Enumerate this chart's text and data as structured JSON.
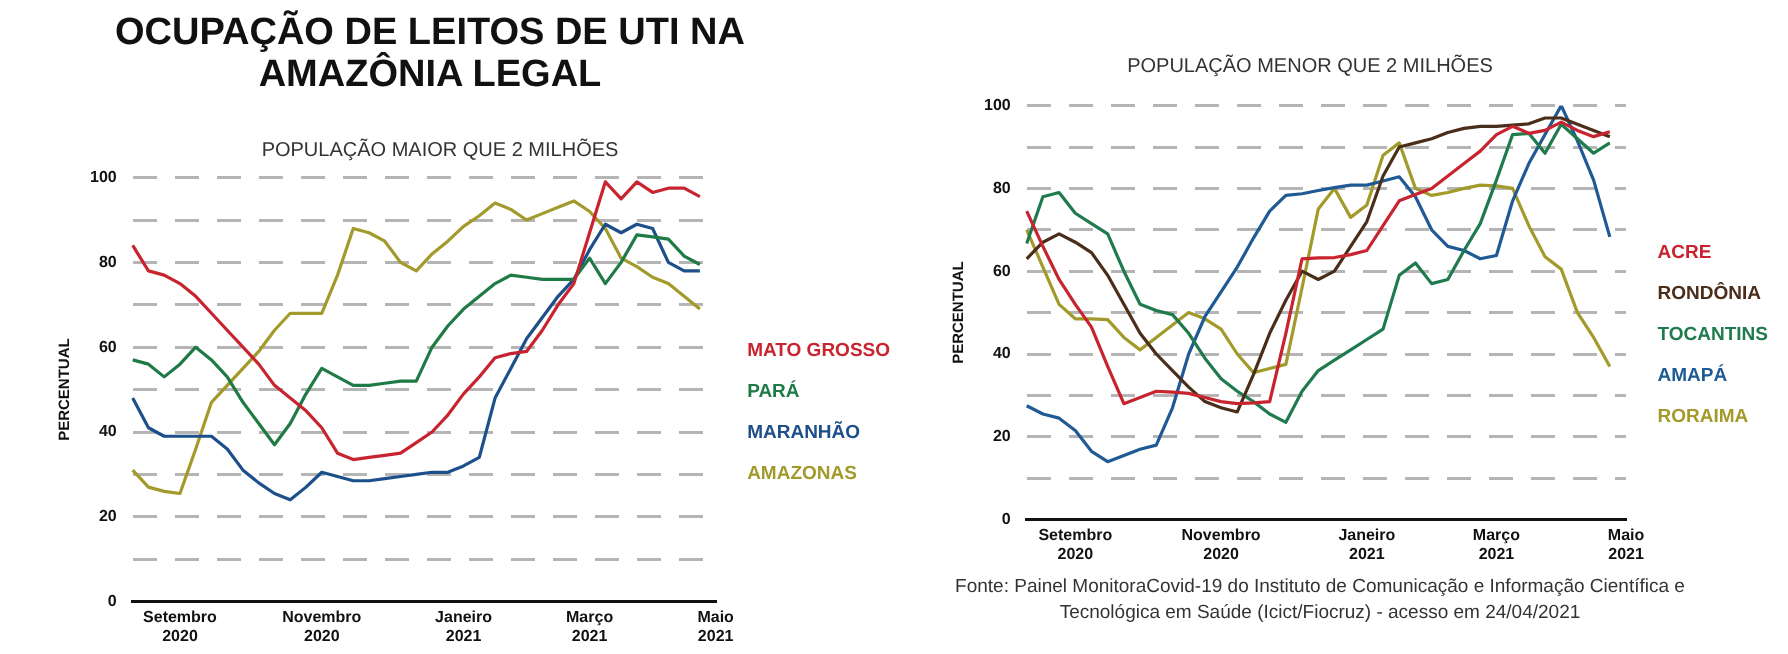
{
  "chart_data": [
    {
      "type": "line",
      "title": "OCUPAÇÃO DE LEITOS DE UTI NA AMAZÔNIA LEGAL",
      "subtitle": "POPULAÇÃO MAIOR QUE 2 MILHÕES",
      "ylabel": "PERCENTUAL",
      "categories": [
        null,
        null,
        null,
        "Setembro 2020",
        null,
        null,
        null,
        null,
        null,
        null,
        null,
        null,
        "Novembro 2020",
        null,
        null,
        null,
        null,
        null,
        null,
        null,
        null,
        "Janeiro 2021",
        null,
        null,
        null,
        null,
        null,
        null,
        null,
        "Março 2021",
        null,
        null,
        null,
        null,
        null,
        null,
        null,
        "Maio 2021"
      ],
      "series": [
        {
          "name": "MATO GROSSO",
          "color": "#c8242f",
          "values": [
            84,
            78,
            77,
            75,
            72,
            68,
            64,
            60,
            56,
            51,
            48,
            45,
            41,
            35,
            33.5,
            34,
            34.5,
            35,
            37.5,
            40,
            44,
            49,
            53,
            57.5,
            58.5,
            59,
            64,
            70,
            75,
            87,
            99,
            95,
            99,
            96.5,
            97.5,
            97.5,
            95.5,
            null
          ]
        },
        {
          "name": "PARÁ",
          "color": "#1f7a45",
          "values": [
            57,
            56,
            53,
            56,
            60,
            57,
            53,
            47,
            42,
            37,
            42,
            49,
            55,
            53,
            51,
            51,
            51.5,
            52,
            52,
            60,
            65,
            69,
            72,
            75,
            77,
            76.5,
            76,
            76,
            76,
            81,
            75,
            80,
            86.5,
            86,
            85.5,
            81.5,
            79.5,
            null
          ]
        },
        {
          "name": "MARANHÃO",
          "color": "#1d4f8a",
          "values": [
            48,
            41,
            39,
            39,
            39,
            39,
            36,
            31,
            28,
            25.5,
            24,
            27,
            30.5,
            29.5,
            28.5,
            28.5,
            29,
            29.5,
            30,
            30.5,
            30.5,
            32,
            34,
            48,
            55,
            62,
            67,
            72,
            76,
            83,
            89,
            87,
            89,
            88,
            80,
            78,
            78,
            null
          ]
        },
        {
          "name": "AMAZONAS",
          "color": "#a39a2c",
          "values": [
            31,
            27,
            26,
            25.5,
            36,
            47,
            51,
            55,
            59,
            64,
            68,
            68,
            68,
            77,
            88,
            87,
            85,
            80,
            78,
            82,
            85,
            88.5,
            91,
            94,
            92.5,
            90,
            91.5,
            93,
            94.5,
            92,
            88,
            81,
            79,
            76.5,
            75,
            72,
            69,
            null
          ]
        }
      ],
      "ylim": [
        0,
        100
      ],
      "yticks": [
        0,
        {
          "value": 10,
          "label": null
        },
        20,
        {
          "value": 30,
          "label": null
        },
        40,
        {
          "value": 50,
          "label": null
        },
        60,
        {
          "value": 70,
          "label": null
        },
        80,
        {
          "value": 90,
          "label": null
        },
        100
      ],
      "grid": "y",
      "legend": "right",
      "marker": "none",
      "line_style": "solid"
    },
    {
      "type": "line",
      "title": "POPULAÇÃO MENOR QUE 2 MILHÕES",
      "ylabel": "PERCENTUAL",
      "categories": [
        null,
        null,
        null,
        "Setembro 2020",
        null,
        null,
        null,
        null,
        null,
        null,
        null,
        null,
        "Novembro 2020",
        null,
        null,
        null,
        null,
        null,
        null,
        null,
        null,
        "Janeiro 2021",
        null,
        null,
        null,
        null,
        null,
        null,
        null,
        "Março 2021",
        null,
        null,
        null,
        null,
        null,
        null,
        null,
        "Maio 2021"
      ],
      "series": [
        {
          "name": "ACRE",
          "color": "#c8242f",
          "values": [
            74.5,
            66,
            58,
            52,
            46.5,
            37,
            28,
            29.5,
            31,
            30.8,
            30.5,
            29.5,
            28.5,
            28,
            28.2,
            28.5,
            45,
            63,
            63.2,
            63.3,
            64,
            65,
            71,
            77,
            78.5,
            80,
            83,
            86,
            89,
            93,
            95,
            93.3,
            94,
            96,
            94,
            92.5,
            93.7,
            null
          ]
        },
        {
          "name": "RONDÔNIA",
          "color": "#4a2e1a",
          "values": [
            63,
            67,
            69,
            67,
            64.5,
            59,
            52,
            45,
            40,
            36,
            32,
            28.5,
            27,
            26,
            35,
            45,
            53,
            60,
            58,
            60,
            66,
            72,
            83,
            90,
            91,
            92,
            93.5,
            94.5,
            95,
            95,
            95.3,
            95.6,
            97,
            97,
            95.5,
            94,
            92.5,
            null
          ]
        },
        {
          "name": "TOCANTINS",
          "color": "#1f7a4d",
          "values": [
            66.7,
            78,
            79,
            74,
            71.5,
            69,
            60,
            52,
            50.5,
            49.5,
            45,
            39,
            34,
            31,
            28.5,
            25.5,
            23.5,
            31,
            36,
            38.5,
            41,
            43.5,
            46,
            59,
            62,
            57,
            58,
            65,
            71.5,
            82,
            93,
            93.3,
            88.5,
            95.5,
            92,
            88.5,
            91,
            null
          ]
        },
        {
          "name": "AMAPÁ",
          "color": "#1f5a94",
          "values": [
            27.5,
            25.5,
            24.5,
            21.5,
            16.5,
            14,
            15.5,
            17,
            18,
            27,
            40,
            49,
            55,
            61,
            68,
            74.5,
            78.3,
            78.7,
            79.5,
            80.2,
            80.8,
            80.8,
            81.8,
            82.8,
            78,
            70,
            66,
            65,
            63,
            63.8,
            77,
            86,
            93,
            100,
            91.5,
            82,
            68.3,
            null
          ]
        },
        {
          "name": "RORAIMA",
          "color": "#a39a2c",
          "values": [
            70,
            61,
            52,
            48.5,
            48.5,
            48.3,
            44,
            41,
            44,
            47,
            50,
            48.5,
            46,
            40,
            35.5,
            36.5,
            37.5,
            56,
            75,
            80,
            73,
            76,
            88,
            91,
            80,
            78.3,
            79,
            80,
            80.8,
            80.6,
            80,
            71,
            63.5,
            60.5,
            50,
            44,
            37,
            null
          ]
        }
      ],
      "ylim": [
        0,
        100
      ],
      "yticks": [
        0,
        {
          "value": 10,
          "label": null
        },
        20,
        {
          "value": 30,
          "label": null
        },
        40,
        {
          "value": 50,
          "label": null
        },
        60,
        {
          "value": 70,
          "label": null
        },
        80,
        {
          "value": 90,
          "label": null
        },
        100
      ],
      "grid": "y",
      "legend": "right",
      "marker": "none",
      "line_style": "solid",
      "annotations": [
        "Fonte: Painel MonitoraCovid-19 do Instituto de Comunicação e Informação Científica e Tecnológica em Saúde (Icict/Fiocruz) - acesso em 24/04/2021"
      ]
    }
  ]
}
